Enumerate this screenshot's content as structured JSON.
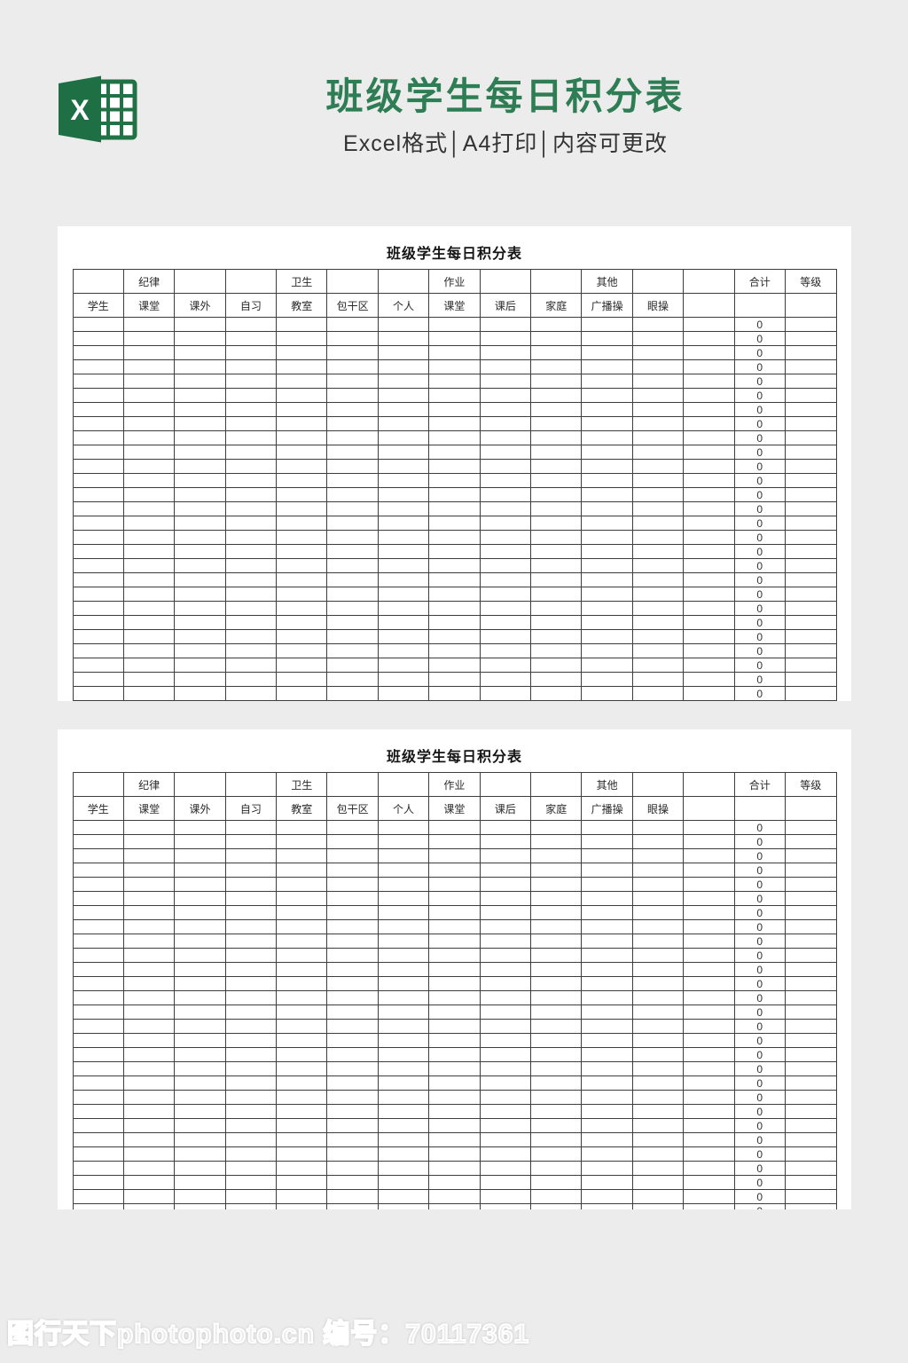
{
  "header": {
    "title": "班级学生每日积分表",
    "subtitle": "Excel格式│A4打印│内容可更改",
    "icon_letter": "X"
  },
  "sheet": {
    "title": "班级学生每日积分表",
    "group_header": [
      "",
      "纪律",
      "",
      "",
      "卫生",
      "",
      "",
      "作业",
      "",
      "",
      "其他",
      "",
      "",
      "合计",
      "等级"
    ],
    "column_header": [
      "学生",
      "课堂",
      "课外",
      "自习",
      "教室",
      "包干区",
      "个人",
      "课堂",
      "课后",
      "家庭",
      "广播操",
      "眼操",
      "",
      "",
      ""
    ],
    "body": {
      "row_count": 28,
      "total_column_index": 13,
      "total_value": "0"
    }
  },
  "watermark": {
    "text": "图行天下photophoto.cn 编号：70117361"
  },
  "colors": {
    "brand_green": "#217346",
    "title_green": "#2f7d54",
    "page_background": "#ececec",
    "card_background": "#ffffff",
    "grid_line": "#3d3d3d"
  }
}
